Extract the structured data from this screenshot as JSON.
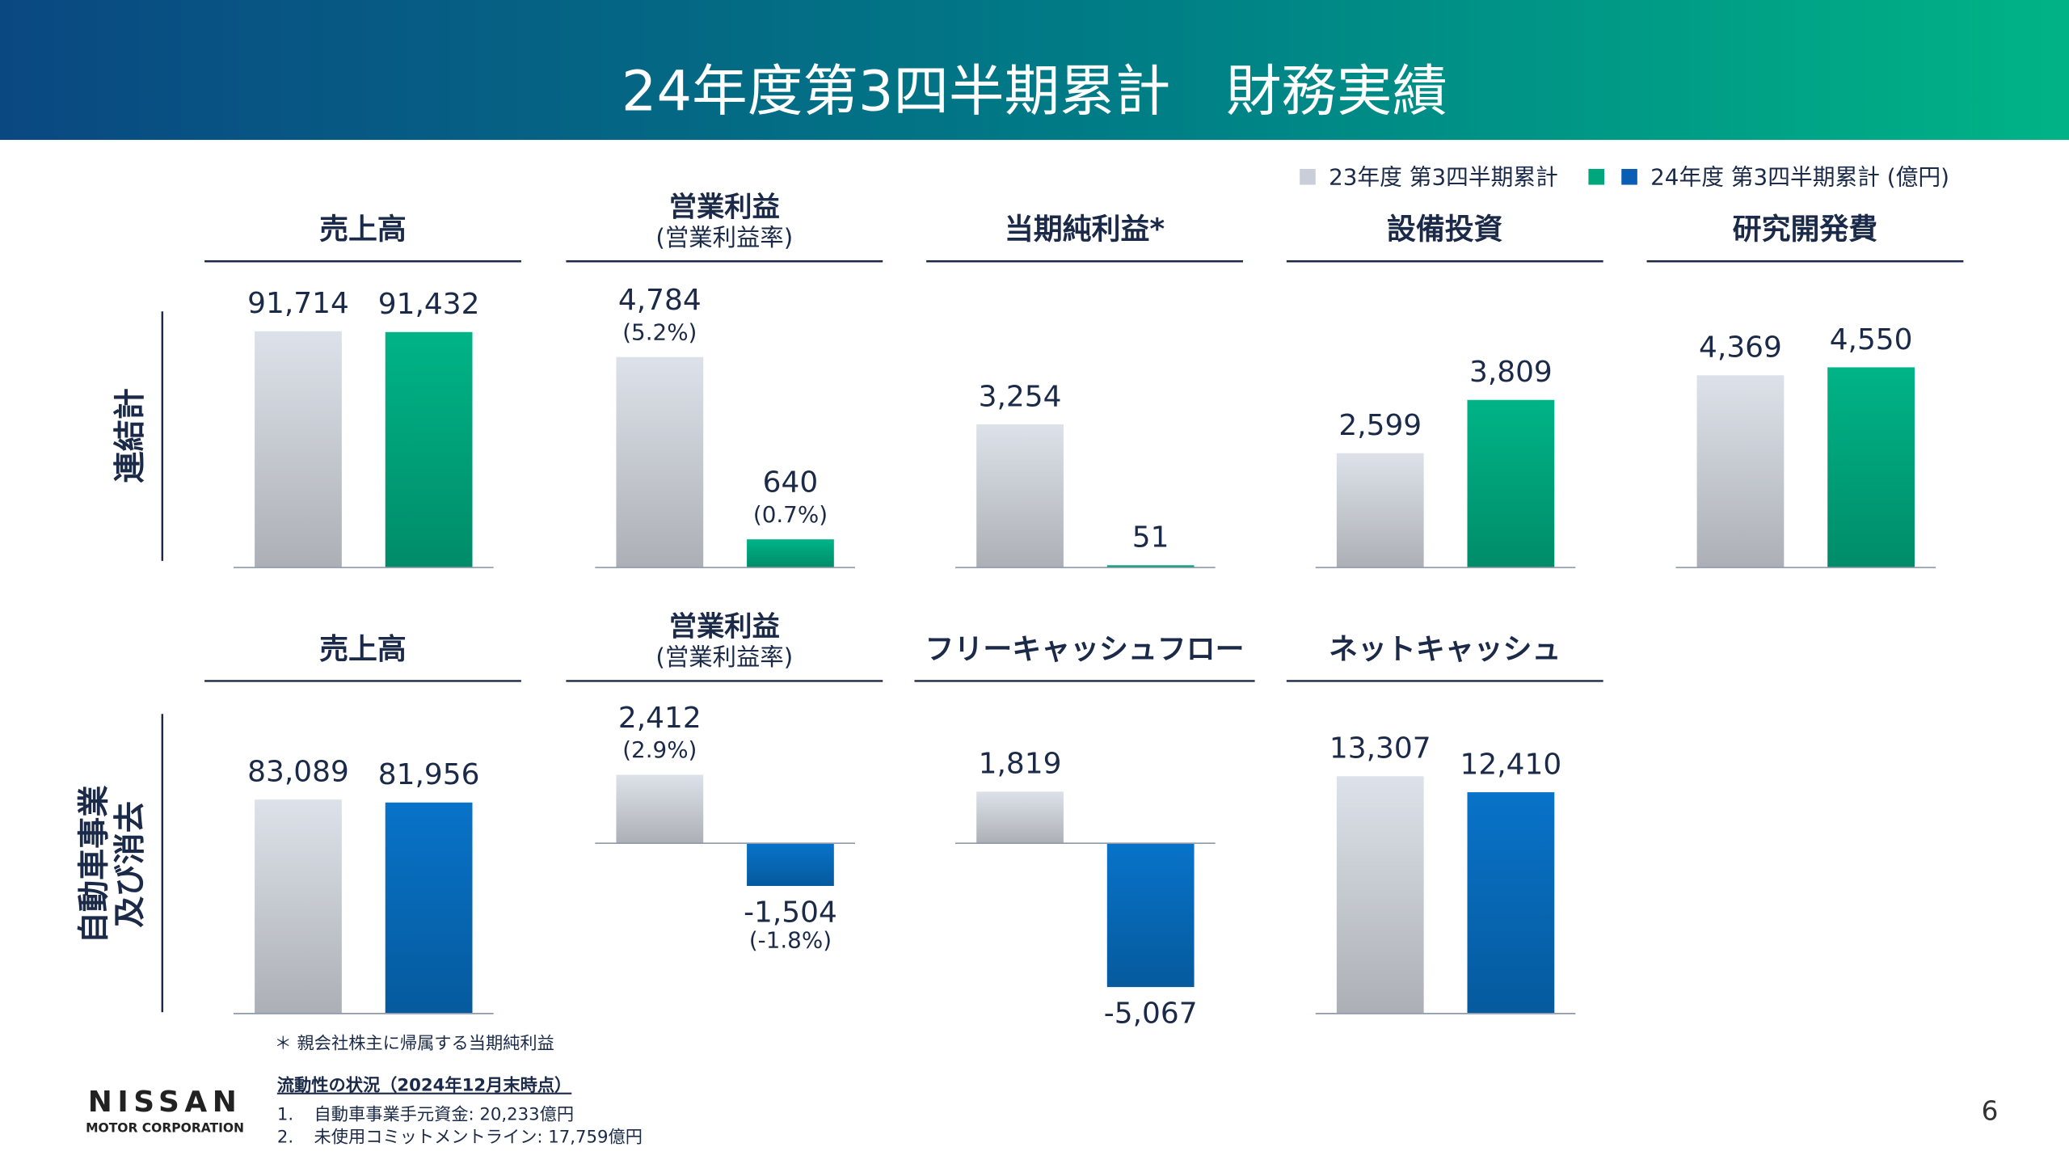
{
  "title": "24年度第3四半期累計　財務実績",
  "legend": [
    {
      "name": "23年度 第3四半期累計",
      "colors": [
        "#c9ceda"
      ]
    },
    {
      "name": "24年度 第3四半期累計 (億円)",
      "colors": [
        "#00a77c",
        "#0a5fb5"
      ]
    }
  ],
  "row_labels": [
    [
      "連結計"
    ],
    [
      "自動車事業",
      "及び消去"
    ]
  ],
  "chart_data": [
    {
      "type": "bar",
      "title": "売上高",
      "values": [
        91714,
        91432
      ],
      "value_labels": [
        "91,714",
        "91,432"
      ],
      "colors": [
        "#dde1e9",
        "#00b487"
      ],
      "ylim": [
        0,
        102500
      ]
    },
    {
      "type": "bar",
      "title": "営業利益",
      "subtitle": "(営業利益率)",
      "values": [
        4784,
        640
      ],
      "value_labels": [
        "4,784",
        "640"
      ],
      "rate_labels": [
        "(5.2%)",
        "(0.7%)"
      ],
      "colors": [
        "#dde1e9",
        "#00b487"
      ],
      "ylim": [
        0,
        6000
      ]
    },
    {
      "type": "bar",
      "title": "当期純利益*",
      "values": [
        3254,
        51
      ],
      "value_labels": [
        "3,254",
        "51"
      ],
      "colors": [
        "#dde1e9",
        "#00b487"
      ],
      "ylim": [
        0,
        6000
      ]
    },
    {
      "type": "bar",
      "title": "設備投資",
      "values": [
        2599,
        3809
      ],
      "value_labels": [
        "2,599",
        "3,809"
      ],
      "colors": [
        "#dde1e9",
        "#00b487"
      ],
      "ylim": [
        0,
        6000
      ]
    },
    {
      "type": "bar",
      "title": "研究開発費",
      "values": [
        4369,
        4550
      ],
      "value_labels": [
        "4,369",
        "4,550"
      ],
      "colors": [
        "#dde1e9",
        "#00b487"
      ],
      "ylim": [
        0,
        6000
      ]
    },
    {
      "type": "bar",
      "title": "売上高",
      "values": [
        83089,
        81956
      ],
      "value_labels": [
        "83,089",
        "81,956"
      ],
      "colors": [
        "#dde1e9",
        "#0873c9"
      ],
      "ylim": [
        0,
        102500
      ]
    },
    {
      "type": "bar",
      "title": "営業利益",
      "subtitle": "(営業利益率)",
      "values": [
        2412,
        -1504
      ],
      "value_labels": [
        "2,412",
        "-1,504"
      ],
      "rate_labels": [
        "(2.9%)",
        "(-1.8%)"
      ],
      "colors": [
        "#dde1e9",
        "#0873c9"
      ],
      "ylim": [
        -6000,
        3300
      ]
    },
    {
      "type": "bar",
      "title": "フリーキャッシュフロー",
      "values": [
        1819,
        -5067
      ],
      "value_labels": [
        "1,819",
        "-5,067"
      ],
      "colors": [
        "#dde1e9",
        "#0873c9"
      ],
      "ylim": [
        -6000,
        3300
      ]
    },
    {
      "type": "bar",
      "title": "ネットキャッシュ",
      "values": [
        13307,
        12410
      ],
      "value_labels": [
        "13,307",
        "12,410"
      ],
      "colors": [
        "#dde1e9",
        "#0873c9"
      ],
      "ylim": [
        0,
        14800
      ]
    }
  ],
  "footnote": "＊ 親会社株主に帰属する当期純利益",
  "liquidity": {
    "heading": "流動性の状況（2024年12月末時点）",
    "items": [
      {
        "num": "1.",
        "text": "自動車事業手元資金: 20,233億円"
      },
      {
        "num": "2.",
        "text": "未使用コミットメントライン: 17,759億円"
      }
    ]
  },
  "logo": {
    "name": "NISSAN",
    "sub": "MOTOR CORPORATION"
  },
  "page_number": "6"
}
